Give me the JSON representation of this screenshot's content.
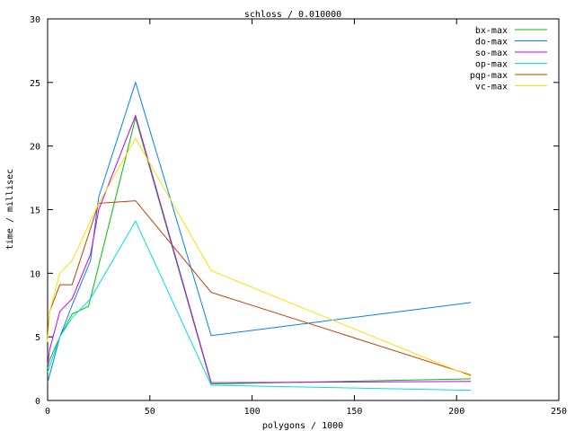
{
  "chart_data": {
    "type": "line",
    "title": "schloss / 0.010000",
    "xlabel": "polygons / 1000",
    "ylabel": "time / millisec",
    "xlim": [
      0,
      250
    ],
    "ylim": [
      0,
      30
    ],
    "xticks": [
      0,
      50,
      100,
      150,
      200,
      250
    ],
    "yticks": [
      0,
      5,
      10,
      15,
      20,
      25,
      30
    ],
    "grid": false,
    "legend": "top-right",
    "series": [
      {
        "name": "bx-max",
        "color": "#00c000",
        "x": [
          0,
          1,
          6,
          12,
          20,
          43,
          80,
          207
        ],
        "y": [
          2.5,
          3.2,
          5,
          6.8,
          7.4,
          22.2,
          1.3,
          1.7
        ]
      },
      {
        "name": "do-max",
        "color": "#0080ff",
        "x": [
          0,
          6,
          12,
          21,
          25,
          43,
          80,
          207
        ],
        "y": [
          1.4,
          5,
          7.5,
          11,
          16,
          25,
          5.1,
          7.7
        ]
      },
      {
        "name": "so-max",
        "color": "#c000ff",
        "x": [
          0,
          1,
          6,
          12,
          21,
          25,
          43,
          80,
          207
        ],
        "y": [
          2.8,
          4,
          7,
          8,
          11.5,
          15,
          22.4,
          1.4,
          1.5
        ]
      },
      {
        "name": "op-max",
        "color": "#00e0e0",
        "x": [
          0,
          6,
          12,
          21,
          43,
          80,
          207
        ],
        "y": [
          2.2,
          5,
          6.5,
          8,
          14.1,
          1.2,
          0.8
        ]
      },
      {
        "name": "pqp-max",
        "color": "#c04000",
        "x": [
          0,
          1,
          6,
          12,
          25,
          43,
          80,
          207
        ],
        "y": [
          5,
          7,
          9.1,
          9.1,
          15.5,
          15.7,
          8.5,
          2
        ]
      },
      {
        "name": "vc-max",
        "color": "#ffe000",
        "x": [
          0,
          1,
          6,
          12,
          25,
          43,
          80,
          207
        ],
        "y": [
          4.6,
          7,
          10,
          11,
          15.5,
          20.6,
          10.2,
          1.9
        ]
      }
    ]
  }
}
